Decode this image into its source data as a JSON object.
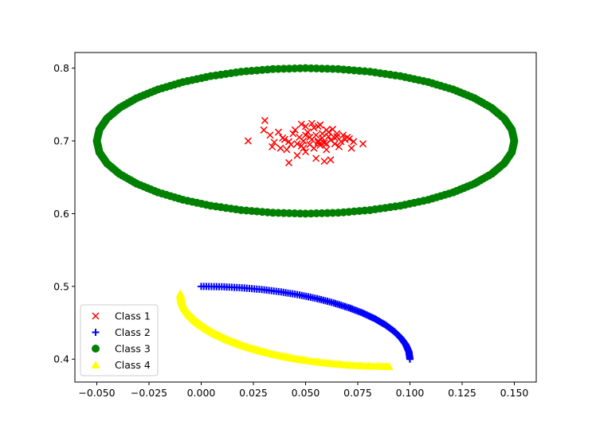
{
  "chart_data": {
    "type": "scatter",
    "title": "",
    "xlabel": "",
    "ylabel": "",
    "xlim": [
      -0.0605,
      0.1605
    ],
    "ylim": [
      0.3685,
      0.8215
    ],
    "xticks": [
      -0.05,
      -0.025,
      0.0,
      0.025,
      0.05,
      0.075,
      0.1,
      0.125,
      0.15
    ],
    "xtick_labels": [
      "−0.050",
      "−0.025",
      "0.000",
      "0.025",
      "0.050",
      "0.075",
      "0.100",
      "0.125",
      "0.150"
    ],
    "yticks": [
      0.4,
      0.5,
      0.6,
      0.7,
      0.8
    ],
    "ytick_labels": [
      "0.4",
      "0.5",
      "0.6",
      "0.7",
      "0.8"
    ],
    "grid": false,
    "legend_position": "lower left",
    "series": [
      {
        "name": "Class 1",
        "marker": "x",
        "color": "#ff0000",
        "description": "Gaussian cluster centred at (0.055, 0.70)",
        "x": [
          0.0305,
          0.0225,
          0.0775,
          0.042,
          0.048,
          0.053,
          0.056,
          0.06,
          0.065,
          0.07,
          0.072,
          0.046,
          0.05,
          0.055,
          0.059,
          0.062,
          0.038,
          0.035,
          0.033,
          0.04,
          0.044,
          0.051,
          0.054,
          0.057,
          0.061,
          0.064,
          0.066,
          0.068,
          0.049,
          0.052,
          0.058,
          0.063,
          0.043,
          0.047,
          0.056,
          0.06,
          0.045,
          0.05,
          0.054,
          0.059,
          0.062,
          0.067,
          0.037,
          0.041,
          0.048,
          0.055,
          0.057,
          0.061,
          0.069,
          0.073,
          0.03,
          0.039,
          0.046,
          0.052,
          0.058,
          0.065,
          0.071,
          0.034,
          0.042,
          0.05,
          0.056,
          0.06,
          0.064,
          0.049,
          0.053,
          0.057
        ],
        "y": [
          0.728,
          0.7,
          0.696,
          0.67,
          0.723,
          0.724,
          0.72,
          0.715,
          0.71,
          0.705,
          0.69,
          0.68,
          0.685,
          0.676,
          0.672,
          0.674,
          0.69,
          0.698,
          0.708,
          0.702,
          0.71,
          0.712,
          0.718,
          0.722,
          0.706,
          0.696,
          0.692,
          0.708,
          0.7,
          0.695,
          0.704,
          0.716,
          0.695,
          0.705,
          0.698,
          0.688,
          0.715,
          0.72,
          0.69,
          0.697,
          0.701,
          0.699,
          0.712,
          0.688,
          0.693,
          0.708,
          0.694,
          0.712,
          0.702,
          0.699,
          0.715,
          0.704,
          0.696,
          0.705,
          0.71,
          0.706,
          0.703,
          0.692,
          0.699,
          0.708,
          0.7,
          0.696,
          0.704,
          0.69,
          0.702,
          0.697
        ]
      },
      {
        "name": "Class 2",
        "marker": "+",
        "color": "#0000ff",
        "description": "Quarter-ellipse arc from (0.0, 0.5) to (0.1, 0.4)",
        "x": [
          0.0,
          0.00984,
          0.01951,
          0.02903,
          0.03827,
          0.04714,
          0.05556,
          0.06344,
          0.07071,
          0.0773,
          0.08315,
          0.08819,
          0.09239,
          0.09569,
          0.09808,
          0.09952,
          0.1
        ],
        "y": [
          0.5,
          0.49952,
          0.49808,
          0.49569,
          0.49239,
          0.48819,
          0.48315,
          0.4773,
          0.47071,
          0.46344,
          0.45556,
          0.44714,
          0.43827,
          0.42903,
          0.41951,
          0.40984,
          0.4
        ]
      },
      {
        "name": "Class 3",
        "marker": "o",
        "color": "#008000",
        "description": "Ellipse centred at (0.05, 0.70), half-width 0.10, half-height 0.10",
        "x": [
          0.15,
          0.14877,
          0.14511,
          0.1391,
          0.1309,
          0.12071,
          0.10878,
          0.0954,
          0.0809,
          0.06564,
          0.05,
          0.03436,
          0.0191,
          0.0046,
          -0.00878,
          -0.02071,
          -0.0309,
          -0.0391,
          -0.04511,
          -0.04877,
          -0.05,
          -0.04877,
          -0.04511,
          -0.0391,
          -0.0309,
          -0.02071,
          -0.00878,
          0.0046,
          0.0191,
          0.03436,
          0.05,
          0.06564,
          0.0809,
          0.0954,
          0.10878,
          0.12071,
          0.1309,
          0.1391,
          0.14511,
          0.14877
        ],
        "y": [
          0.7,
          0.71564,
          0.7309,
          0.7454,
          0.75878,
          0.77071,
          0.7809,
          0.7891,
          0.79511,
          0.79877,
          0.8,
          0.79877,
          0.79511,
          0.7891,
          0.7809,
          0.77071,
          0.75878,
          0.7454,
          0.7309,
          0.71564,
          0.7,
          0.68436,
          0.6691,
          0.6546,
          0.64122,
          0.62929,
          0.6191,
          0.6109,
          0.60489,
          0.60123,
          0.6,
          0.60123,
          0.60489,
          0.6109,
          0.6191,
          0.62929,
          0.64122,
          0.6546,
          0.6691,
          0.68436
        ]
      },
      {
        "name": "Class 4",
        "marker": "^",
        "color": "#ffff00",
        "description": "Quarter-ellipse arc from (-0.01, 0.49) to (0.09, 0.39)",
        "x": [
          -0.01,
          -0.00952,
          -0.00808,
          -0.00569,
          -0.00239,
          0.00181,
          0.00685,
          0.0127,
          0.01929,
          0.02656,
          0.03444,
          0.04286,
          0.05173,
          0.06097,
          0.07049,
          0.08016,
          0.09
        ],
        "y": [
          0.49,
          0.48016,
          0.47049,
          0.46097,
          0.45173,
          0.44286,
          0.43444,
          0.42656,
          0.41929,
          0.4127,
          0.40685,
          0.40181,
          0.39761,
          0.39431,
          0.39192,
          0.39048,
          0.39
        ]
      }
    ]
  }
}
